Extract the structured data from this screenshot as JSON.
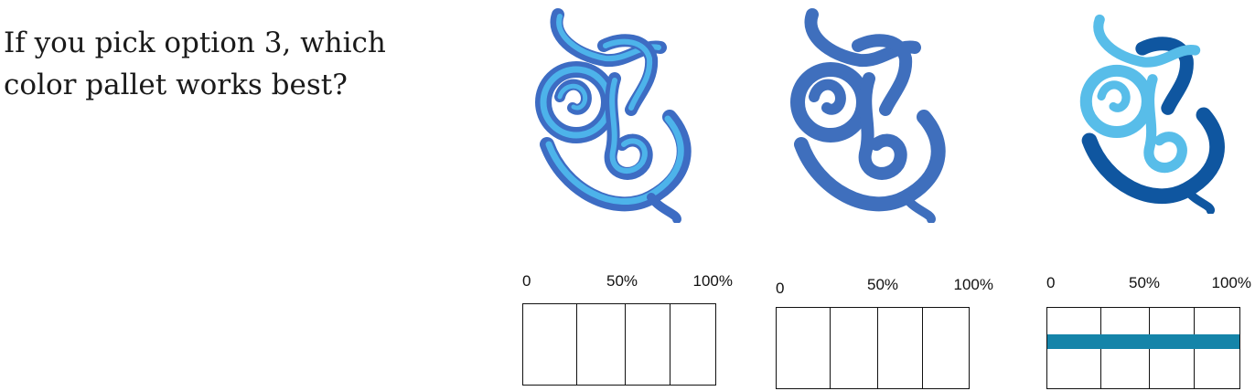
{
  "question": "If you pick option 3, which color pallet works best?",
  "colors": {
    "opt1_main": "#3d6cc3",
    "opt1_accent": "#4db3ea",
    "opt2_main": "#3f6fbd",
    "opt3_main": "#0f56a0",
    "opt3_accent": "#58bde9",
    "bar_fill": "#1584a9"
  },
  "options": [
    {
      "scale": {
        "min": "0",
        "mid": "50%",
        "max": "100%"
      },
      "fill_fraction": 0
    },
    {
      "scale": {
        "min": "0",
        "mid": "50%",
        "max": "100%"
      },
      "fill_fraction": 0
    },
    {
      "scale": {
        "min": "0",
        "mid": "50%",
        "max": "100%"
      },
      "fill_fraction": 1
    }
  ]
}
